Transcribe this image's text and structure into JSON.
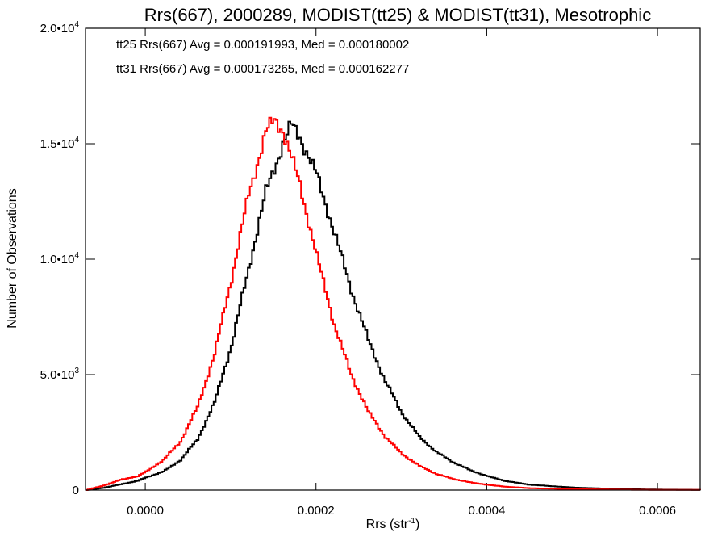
{
  "chart_data": {
    "type": "line",
    "title": "Rrs(667), 2000289, MODIST(tt25) & MODIST(tt31), Mesotrophic",
    "xlabel": {
      "base": "Rrs (str",
      "sup": "-1",
      "close": ")"
    },
    "ylabel": "Number of Observations",
    "xlim": [
      -7e-05,
      0.00065
    ],
    "ylim": [
      0,
      20000
    ],
    "xticks": [
      {
        "value": 0.0,
        "label": "0.0000"
      },
      {
        "value": 0.0002,
        "label": "0.0002"
      },
      {
        "value": 0.0004,
        "label": "0.0004"
      },
      {
        "value": 0.0006,
        "label": "0.0006"
      }
    ],
    "yticks": [
      {
        "value": 0,
        "mant": "0",
        "exp": ""
      },
      {
        "value": 5000,
        "mant": "5.0•10",
        "exp": "3"
      },
      {
        "value": 10000,
        "mant": "1.0•10",
        "exp": "4"
      },
      {
        "value": 15000,
        "mant": "1.5•10",
        "exp": "4"
      },
      {
        "value": 20000,
        "mant": "2.0•10",
        "exp": "4"
      }
    ],
    "annotations": [
      {
        "text": "tt25 Rrs(667) Avg = 0.000191993, Med = 0.000180002",
        "color": "#000000"
      },
      {
        "text": "tt31 Rrs(667) Avg = 0.000173265, Med = 0.000162277",
        "color": "#ff0000"
      }
    ],
    "series": [
      {
        "color": "#000000",
        "x": [
          -7e-05,
          -5e-05,
          -3e-05,
          -1e-05,
          0.0,
          2e-05,
          4e-05,
          6e-05,
          8e-05,
          0.0001,
          0.00012,
          0.00014,
          0.00016,
          0.00017,
          0.00018,
          0.0002,
          0.00022,
          0.00024,
          0.00026,
          0.00028,
          0.0003,
          0.00032,
          0.00034,
          0.00036,
          0.00038,
          0.0004,
          0.00042,
          0.00045,
          0.0005,
          0.00055,
          0.0006,
          0.00065
        ],
        "y": [
          0,
          100,
          250,
          400,
          550,
          800,
          1300,
          2200,
          3800,
          6300,
          9600,
          12900,
          15000,
          15800,
          15300,
          13600,
          11200,
          8700,
          6500,
          4700,
          3300,
          2300,
          1650,
          1200,
          850,
          600,
          400,
          230,
          110,
          50,
          20,
          10
        ]
      },
      {
        "color": "#ff0000",
        "x": [
          -7e-05,
          -5e-05,
          -3e-05,
          -1e-05,
          0.0,
          2e-05,
          4e-05,
          6e-05,
          8e-05,
          0.0001,
          0.00012,
          0.00014,
          0.00015,
          0.00016,
          0.00018,
          0.0002,
          0.00022,
          0.00024,
          0.00026,
          0.00028,
          0.0003,
          0.00032,
          0.00034,
          0.00036,
          0.00038,
          0.0004,
          0.00042,
          0.00045,
          0.0005,
          0.00055,
          0.0006,
          0.00065
        ],
        "y": [
          0,
          200,
          450,
          600,
          800,
          1300,
          2100,
          3600,
          5900,
          9200,
          12800,
          15500,
          16000,
          15600,
          13200,
          10100,
          7200,
          5000,
          3400,
          2300,
          1550,
          1050,
          700,
          480,
          330,
          230,
          150,
          80,
          40,
          20,
          10,
          5
        ]
      }
    ]
  }
}
